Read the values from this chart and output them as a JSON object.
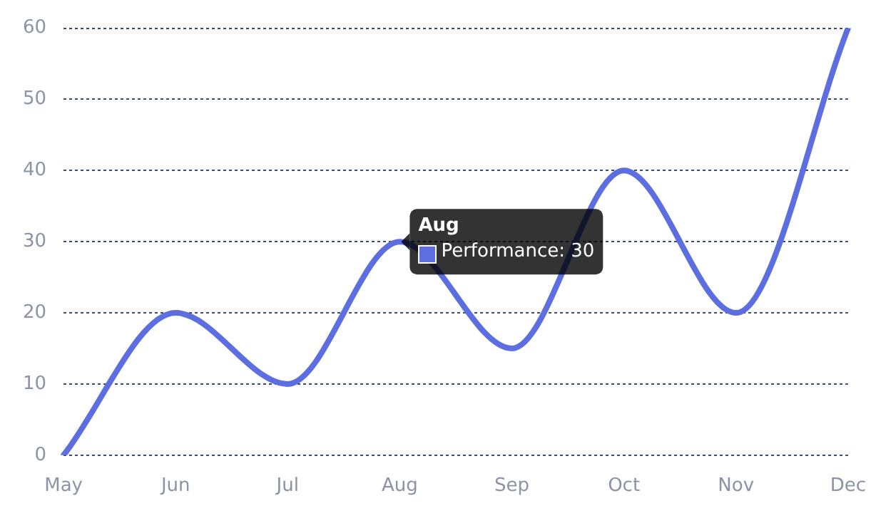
{
  "chart_data": {
    "type": "line",
    "categories": [
      "May",
      "Jun",
      "Jul",
      "Aug",
      "Sep",
      "Oct",
      "Nov",
      "Dec"
    ],
    "series": [
      {
        "color": "#5c6ee0",
        "values": [
          0,
          20,
          10,
          30,
          15,
          40,
          20,
          60
        ]
      }
    ],
    "ylim": [
      0,
      60
    ],
    "yticks": [
      0,
      10,
      20,
      30,
      40,
      50,
      60
    ],
    "grid": "y",
    "legend": false,
    "marker": "none",
    "line_style": "solid",
    "annotations": [
      {
        "text": "Aug",
        "x": "Aug",
        "y": 30
      },
      "Performance: 30"
    ]
  }
}
